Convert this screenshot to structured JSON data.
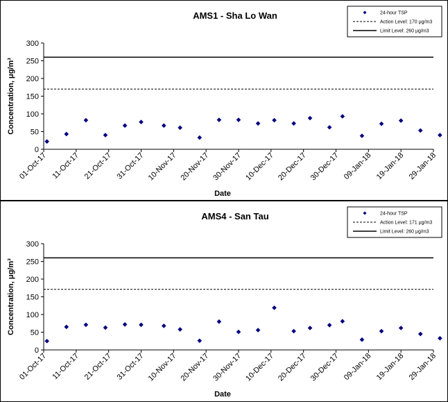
{
  "chart_data": [
    {
      "type": "scatter",
      "title": "AMS1 - Sha Lo Wan",
      "xlabel": "Date",
      "ylabel": "Concentration, μg/m³",
      "ylim": [
        0,
        300
      ],
      "yticks": [
        "0",
        "50",
        "100",
        "150",
        "200",
        "250",
        "300"
      ],
      "xlim": [
        "01-Oct-17",
        "29-Jan-18"
      ],
      "xticks": [
        "01-Oct-17",
        "11-Oct-17",
        "21-Oct-17",
        "31-Oct-17",
        "10-Nov-17",
        "20-Nov-17",
        "30-Nov-17",
        "10-Dec-17",
        "20-Dec-17",
        "30-Dec-17",
        "09-Jan-18",
        "19-Jan-18",
        "29-Jan-18"
      ],
      "legend_position": "top-right",
      "series": [
        {
          "name": "24-hour TSP",
          "marker": "diamond",
          "color": "#000080",
          "x": [
            "02-Oct-17",
            "08-Oct-17",
            "14-Oct-17",
            "20-Oct-17",
            "26-Oct-17",
            "31-Oct-17",
            "07-Nov-17",
            "12-Nov-17",
            "18-Nov-17",
            "24-Nov-17",
            "30-Nov-17",
            "06-Dec-17",
            "11-Dec-17",
            "17-Dec-17",
            "22-Dec-17",
            "28-Dec-17",
            "01-Jan-18",
            "07-Jan-18",
            "13-Jan-18",
            "19-Jan-18",
            "25-Jan-18",
            "31-Jan-18"
          ],
          "y": [
            22,
            43,
            82,
            40,
            67,
            77,
            67,
            61,
            33,
            83,
            83,
            73,
            82,
            73,
            88,
            62,
            93,
            38,
            72,
            81,
            53,
            40
          ]
        },
        {
          "name": "Action Level: 170 μg/m3",
          "style": "dashed",
          "color": "#000000",
          "y": 170
        },
        {
          "name": "Limit Level: 260 μg/m3",
          "style": "solid",
          "color": "#000000",
          "y": 260
        }
      ]
    },
    {
      "type": "scatter",
      "title": "AMS4 - San Tau",
      "xlabel": "Date",
      "ylabel": "Concentration, μg/m³",
      "ylim": [
        0,
        300
      ],
      "yticks": [
        "0",
        "50",
        "100",
        "150",
        "200",
        "250",
        "300"
      ],
      "xlim": [
        "01-Oct-17",
        "29-Jan-18"
      ],
      "xticks": [
        "01-Oct-17",
        "11-Oct-17",
        "21-Oct-17",
        "31-Oct-17",
        "10-Nov-17",
        "20-Nov-17",
        "30-Nov-17",
        "10-Dec-17",
        "20-Dec-17",
        "30-Dec-17",
        "09-Jan-18",
        "19-Jan-18",
        "29-Jan-18"
      ],
      "legend_position": "top-right",
      "series": [
        {
          "name": "24-hour TSP",
          "marker": "diamond",
          "color": "#000080",
          "x": [
            "02-Oct-17",
            "08-Oct-17",
            "14-Oct-17",
            "20-Oct-17",
            "26-Oct-17",
            "31-Oct-17",
            "07-Nov-17",
            "12-Nov-17",
            "18-Nov-17",
            "24-Nov-17",
            "30-Nov-17",
            "06-Dec-17",
            "11-Dec-17",
            "17-Dec-17",
            "22-Dec-17",
            "28-Dec-17",
            "01-Jan-18",
            "07-Jan-18",
            "13-Jan-18",
            "19-Jan-18",
            "25-Jan-18",
            "31-Jan-18"
          ],
          "y": [
            25,
            65,
            71,
            63,
            72,
            71,
            68,
            58,
            26,
            80,
            51,
            56,
            119,
            53,
            62,
            70,
            81,
            29,
            53,
            62,
            45,
            33
          ]
        },
        {
          "name": "Action Level: 171 μg/m3",
          "style": "dashed",
          "color": "#000000",
          "y": 171
        },
        {
          "name": "Limit Level: 260 μg/m3",
          "style": "solid",
          "color": "#000000",
          "y": 260
        }
      ]
    }
  ]
}
